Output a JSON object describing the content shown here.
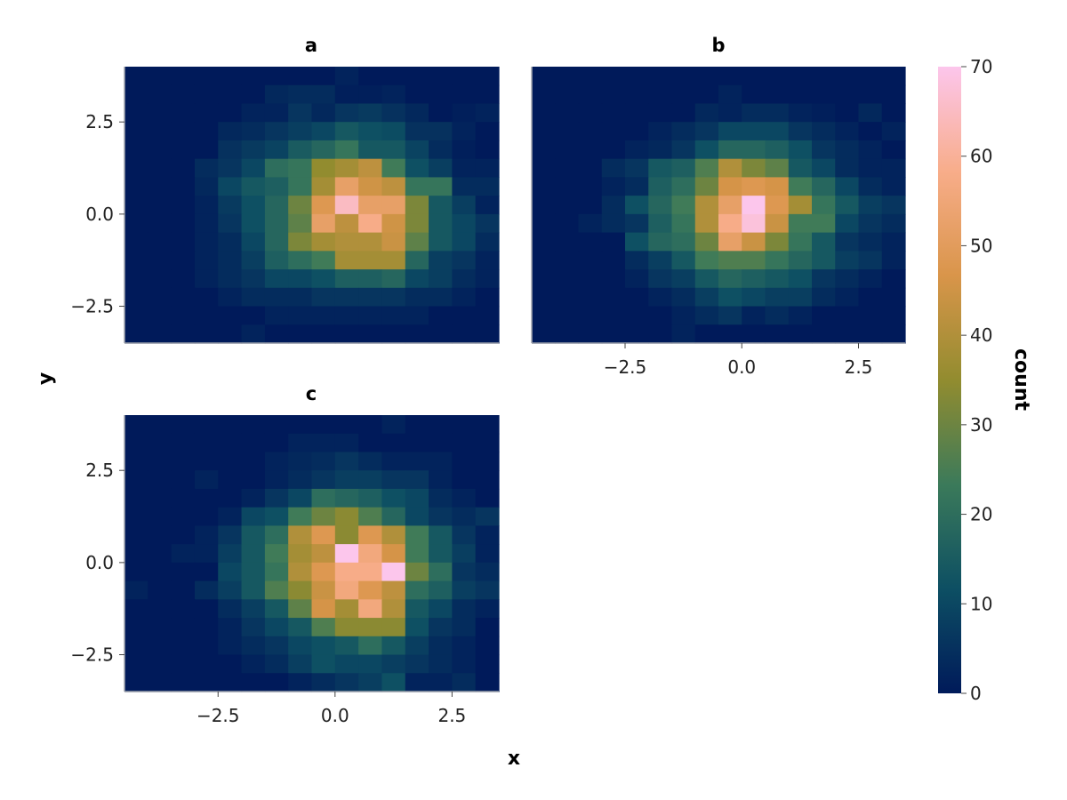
{
  "figure": {
    "xlabel": "x",
    "ylabel": "y",
    "colorbar_label": "count"
  },
  "colors": {
    "colormap": [
      "#001a5a",
      "#0d4f63",
      "#3b7a5a",
      "#928c2f",
      "#d9954a",
      "#f8ad8a",
      "#fcc6ec"
    ],
    "frame": "#a0a4ad"
  },
  "chart_data": [
    {
      "type": "heatmap",
      "title": "a",
      "xlim": [
        -4.5,
        3.5
      ],
      "ylim": [
        -3.5,
        4.0
      ],
      "bin_size": 0.5,
      "x_ticks": [
        "-2.5",
        "0.0",
        "2.5"
      ],
      "y_ticks": [
        "2.5",
        "0.0",
        "-2.5"
      ],
      "show_x_ticks": false,
      "show_y_ticks": true,
      "grid": false,
      "x_start": -4.5,
      "y_start": 4.0,
      "rows": [
        [
          0,
          0,
          0,
          0,
          0,
          0,
          0,
          0,
          0,
          2,
          0,
          0,
          0,
          0,
          0,
          0
        ],
        [
          0,
          0,
          0,
          0,
          0,
          0,
          3,
          4,
          4,
          1,
          1,
          2,
          0,
          0,
          0,
          0
        ],
        [
          0,
          0,
          0,
          0,
          0,
          2,
          2,
          6,
          3,
          6,
          7,
          5,
          3,
          0,
          1,
          2
        ],
        [
          0,
          0,
          0,
          0,
          3,
          4,
          6,
          8,
          10,
          14,
          12,
          11,
          5,
          5,
          2,
          0
        ],
        [
          0,
          0,
          0,
          0,
          5,
          7,
          9,
          15,
          18,
          22,
          14,
          14,
          9,
          4,
          1,
          0
        ],
        [
          0,
          0,
          0,
          4,
          6,
          10,
          20,
          22,
          35,
          38,
          42,
          24,
          12,
          8,
          2,
          2
        ],
        [
          0,
          0,
          0,
          3,
          10,
          14,
          16,
          22,
          38,
          52,
          45,
          42,
          22,
          22,
          4,
          4
        ],
        [
          0,
          0,
          0,
          2,
          7,
          12,
          18,
          30,
          48,
          65,
          52,
          52,
          32,
          14,
          8,
          2
        ],
        [
          0,
          0,
          0,
          2,
          6,
          12,
          18,
          28,
          52,
          42,
          58,
          45,
          32,
          14,
          10,
          6
        ],
        [
          0,
          0,
          0,
          2,
          4,
          10,
          18,
          32,
          38,
          40,
          40,
          44,
          28,
          14,
          10,
          4
        ],
        [
          0,
          0,
          0,
          2,
          4,
          8,
          16,
          20,
          24,
          38,
          38,
          38,
          18,
          8,
          6,
          2
        ],
        [
          0,
          0,
          0,
          2,
          4,
          6,
          10,
          10,
          12,
          16,
          16,
          18,
          10,
          8,
          4,
          2
        ],
        [
          0,
          0,
          0,
          0,
          2,
          4,
          4,
          4,
          6,
          6,
          6,
          6,
          4,
          4,
          2,
          0
        ],
        [
          0,
          0,
          0,
          0,
          0,
          0,
          2,
          2,
          2,
          2,
          2,
          2,
          2,
          0,
          0,
          0
        ],
        [
          0,
          0,
          0,
          0,
          0,
          2,
          0,
          0,
          0,
          0,
          0,
          0,
          0,
          0,
          0,
          0
        ]
      ]
    },
    {
      "type": "heatmap",
      "title": "b",
      "xlim": [
        -4.5,
        3.5
      ],
      "ylim": [
        -3.5,
        4.0
      ],
      "bin_size": 0.5,
      "x_ticks": [
        "-2.5",
        "0.0",
        "2.5"
      ],
      "y_ticks": [
        "2.5",
        "0.0",
        "-2.5"
      ],
      "show_x_ticks": true,
      "show_y_ticks": false,
      "grid": false,
      "x_start": -4.5,
      "y_start": 4.0,
      "rows": [
        [
          0,
          0,
          0,
          0,
          0,
          0,
          0,
          0,
          0,
          0,
          0,
          0,
          0,
          0,
          0,
          0
        ],
        [
          0,
          0,
          0,
          0,
          0,
          0,
          0,
          0,
          2,
          0,
          0,
          0,
          0,
          0,
          0,
          0
        ],
        [
          0,
          0,
          0,
          0,
          0,
          0,
          0,
          3,
          2,
          4,
          4,
          2,
          1,
          0,
          3,
          0
        ],
        [
          0,
          0,
          0,
          0,
          0,
          2,
          4,
          6,
          10,
          10,
          10,
          6,
          4,
          2,
          0,
          2
        ],
        [
          0,
          0,
          0,
          0,
          2,
          3,
          6,
          12,
          18,
          18,
          16,
          12,
          6,
          4,
          2,
          0
        ],
        [
          0,
          0,
          0,
          4,
          6,
          14,
          16,
          26,
          40,
          32,
          28,
          14,
          10,
          4,
          2,
          2
        ],
        [
          0,
          0,
          0,
          2,
          4,
          16,
          20,
          30,
          46,
          48,
          46,
          24,
          18,
          10,
          4,
          2
        ],
        [
          0,
          0,
          0,
          4,
          12,
          18,
          24,
          40,
          52,
          70,
          48,
          38,
          22,
          14,
          8,
          6
        ],
        [
          0,
          0,
          2,
          4,
          6,
          16,
          22,
          40,
          58,
          68,
          44,
          24,
          24,
          10,
          6,
          4
        ],
        [
          0,
          0,
          0,
          0,
          12,
          18,
          20,
          30,
          52,
          44,
          32,
          22,
          14,
          6,
          4,
          2
        ],
        [
          0,
          0,
          0,
          0,
          4,
          8,
          14,
          24,
          26,
          26,
          22,
          18,
          14,
          8,
          6,
          2
        ],
        [
          0,
          0,
          0,
          0,
          2,
          6,
          8,
          14,
          18,
          16,
          14,
          12,
          6,
          4,
          2,
          0
        ],
        [
          0,
          0,
          0,
          0,
          0,
          2,
          4,
          8,
          12,
          10,
          8,
          8,
          4,
          2,
          0,
          0
        ],
        [
          0,
          0,
          0,
          0,
          0,
          0,
          2,
          4,
          6,
          2,
          4,
          2,
          0,
          0,
          0,
          0
        ],
        [
          0,
          0,
          0,
          0,
          0,
          0,
          2,
          0,
          0,
          0,
          0,
          0,
          0,
          0,
          0,
          0
        ]
      ]
    },
    {
      "type": "heatmap",
      "title": "c",
      "xlim": [
        -4.5,
        3.5
      ],
      "ylim": [
        -3.5,
        4.0
      ],
      "bin_size": 0.5,
      "x_ticks": [
        "-2.5",
        "0.0",
        "2.5"
      ],
      "y_ticks": [
        "2.5",
        "0.0",
        "-2.5"
      ],
      "show_x_ticks": true,
      "show_y_ticks": true,
      "grid": false,
      "x_start": -4.5,
      "y_start": 4.0,
      "rows": [
        [
          0,
          0,
          0,
          0,
          0,
          0,
          0,
          0,
          0,
          0,
          0,
          2,
          0,
          0,
          0,
          0
        ],
        [
          0,
          0,
          0,
          0,
          0,
          0,
          0,
          2,
          2,
          2,
          0,
          0,
          0,
          0,
          0,
          0
        ],
        [
          0,
          0,
          0,
          0,
          0,
          0,
          2,
          3,
          4,
          6,
          4,
          2,
          2,
          2,
          0,
          0
        ],
        [
          0,
          0,
          0,
          2,
          0,
          0,
          2,
          4,
          6,
          8,
          8,
          6,
          6,
          2,
          0,
          0
        ],
        [
          0,
          0,
          0,
          0,
          0,
          2,
          6,
          10,
          20,
          18,
          16,
          12,
          10,
          4,
          2,
          0
        ],
        [
          0,
          0,
          0,
          0,
          2,
          10,
          12,
          24,
          30,
          34,
          26,
          18,
          10,
          6,
          4,
          6
        ],
        [
          0,
          0,
          0,
          2,
          6,
          14,
          20,
          40,
          48,
          34,
          48,
          40,
          24,
          14,
          6,
          2
        ],
        [
          0,
          0,
          2,
          2,
          8,
          14,
          24,
          38,
          42,
          70,
          56,
          46,
          24,
          14,
          8,
          2
        ],
        [
          0,
          0,
          0,
          0,
          10,
          14,
          22,
          40,
          48,
          58,
          58,
          70,
          30,
          20,
          6,
          4
        ],
        [
          2,
          0,
          0,
          4,
          8,
          14,
          26,
          34,
          44,
          56,
          48,
          42,
          20,
          16,
          8,
          6
        ],
        [
          0,
          0,
          0,
          0,
          4,
          8,
          14,
          28,
          46,
          38,
          56,
          40,
          14,
          10,
          4,
          2
        ],
        [
          0,
          0,
          0,
          0,
          2,
          6,
          10,
          14,
          26,
          34,
          34,
          34,
          12,
          6,
          4,
          0
        ],
        [
          0,
          0,
          0,
          0,
          2,
          4,
          6,
          10,
          12,
          14,
          20,
          14,
          8,
          4,
          2,
          0
        ],
        [
          0,
          0,
          0,
          0,
          0,
          2,
          4,
          8,
          12,
          10,
          10,
          8,
          6,
          4,
          2,
          0
        ],
        [
          0,
          0,
          0,
          0,
          0,
          0,
          0,
          2,
          4,
          6,
          8,
          12,
          2,
          2,
          4,
          0
        ]
      ]
    }
  ],
  "colorbar": {
    "range": [
      0,
      70
    ],
    "ticks": [
      "0",
      "10",
      "20",
      "30",
      "40",
      "50",
      "60",
      "70"
    ],
    "values": [
      0,
      10,
      20,
      30,
      40,
      50,
      60,
      70
    ]
  }
}
